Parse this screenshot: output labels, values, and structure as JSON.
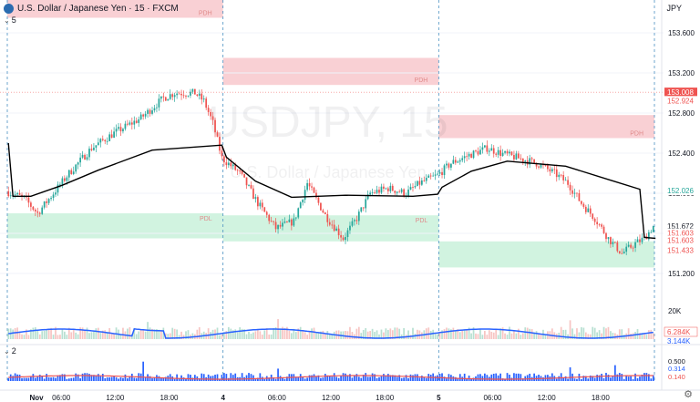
{
  "header": {
    "title": "U.S. Dollar / Japanese Yen · 15 · FXCM",
    "symbol_label": "5",
    "pane2_label": "2",
    "currency": "JPY"
  },
  "colors": {
    "up": "#26a69a",
    "down": "#ef5350",
    "supply": "#f8c8cc",
    "demand": "#c9f1da",
    "vwap": "#000000",
    "volume_ma": "#2962ff",
    "current_price": "#ef5350"
  },
  "chart_data": {
    "type": "candlestick",
    "watermark": "USDJPY, 15",
    "watermark_sub": "U.S. Dollar / Japanese Yen",
    "ylim": [
      150.8,
      153.8
    ],
    "yticks": [
      "153.600",
      "153.200",
      "152.800",
      "152.400",
      "152.000",
      "151.600",
      "151.200"
    ],
    "ytick_values": [
      153.6,
      153.2,
      152.8,
      152.4,
      152.0,
      151.6,
      151.2
    ],
    "xticks": [
      "Nov",
      "06:00",
      "12:00",
      "18:00",
      "4",
      "06:00",
      "12:00",
      "18:00",
      "5",
      "06:00",
      "12:00",
      "18:00"
    ],
    "xtick_values": [
      0,
      24,
      48,
      72,
      96,
      120,
      144,
      168,
      192,
      216,
      240,
      264
    ],
    "session_breaks": [
      0,
      96,
      192,
      288
    ],
    "zones": [
      {
        "kind": "supply",
        "x0": 0,
        "x1": 96,
        "y0": 153.75,
        "y1": 154.0,
        "label": "PDH"
      },
      {
        "kind": "supply",
        "x0": 96,
        "x1": 192,
        "y0": 153.08,
        "y1": 153.35,
        "label": "PDH"
      },
      {
        "kind": "supply",
        "x0": 192,
        "x1": 288,
        "y0": 152.55,
        "y1": 152.78,
        "label": "PDH"
      },
      {
        "kind": "demand",
        "x0": 0,
        "x1": 96,
        "y0": 151.55,
        "y1": 151.8,
        "label": "PDL"
      },
      {
        "kind": "demand",
        "x0": 96,
        "x1": 192,
        "y0": 151.52,
        "y1": 151.78,
        "label": "PDL"
      },
      {
        "kind": "demand",
        "x0": 192,
        "x1": 288,
        "y0": 151.26,
        "y1": 151.52,
        "label": ""
      }
    ],
    "pdh_markers": [
      "PDH",
      "PDH",
      "PDH"
    ],
    "pdl_markers": [
      "PDL",
      "PDL"
    ],
    "vwap": [
      [
        0,
        152.5
      ],
      [
        2,
        151.97
      ],
      [
        10,
        151.97
      ],
      [
        24,
        152.08
      ],
      [
        40,
        152.23
      ],
      [
        64,
        152.43
      ],
      [
        95,
        152.48
      ],
      [
        97,
        152.36
      ],
      [
        110,
        152.12
      ],
      [
        126,
        151.96
      ],
      [
        150,
        151.98
      ],
      [
        180,
        151.97
      ],
      [
        191,
        151.99
      ],
      [
        193,
        152.06
      ],
      [
        206,
        152.22
      ],
      [
        222,
        152.32
      ],
      [
        248,
        152.27
      ],
      [
        268,
        152.13
      ],
      [
        281,
        152.04
      ],
      [
        283,
        151.56
      ],
      [
        288,
        151.55
      ]
    ],
    "series": [
      {
        "keypoints": [
          [
            0,
            152.02
          ],
          [
            8,
            151.95
          ],
          [
            14,
            151.8
          ],
          [
            28,
            152.2
          ],
          [
            38,
            152.45
          ],
          [
            48,
            152.6
          ],
          [
            60,
            152.75
          ],
          [
            70,
            152.95
          ],
          [
            75,
            153.0
          ],
          [
            84,
            153.0
          ],
          [
            88,
            152.92
          ],
          [
            92,
            152.7
          ],
          [
            96,
            152.35
          ],
          [
            104,
            152.2
          ],
          [
            112,
            151.9
          ],
          [
            120,
            151.65
          ],
          [
            128,
            151.72
          ],
          [
            134,
            152.1
          ],
          [
            142,
            151.78
          ],
          [
            150,
            151.55
          ],
          [
            156,
            151.75
          ],
          [
            162,
            152.0
          ],
          [
            170,
            152.05
          ],
          [
            178,
            152.0
          ],
          [
            184,
            152.1
          ],
          [
            192,
            152.18
          ],
          [
            198,
            152.3
          ],
          [
            206,
            152.38
          ],
          [
            214,
            152.45
          ],
          [
            220,
            152.4
          ],
          [
            228,
            152.35
          ],
          [
            236,
            152.3
          ],
          [
            244,
            152.2
          ],
          [
            250,
            152.1
          ],
          [
            256,
            151.9
          ],
          [
            262,
            151.75
          ],
          [
            268,
            151.55
          ],
          [
            274,
            151.4
          ],
          [
            280,
            151.5
          ],
          [
            284,
            151.55
          ],
          [
            288,
            151.67
          ]
        ]
      }
    ],
    "current_labels": {
      "price_last": "153.008",
      "price_close": "152.924",
      "vwap_label": "152.026",
      "last2": "151.672",
      "l3": "151.603",
      "l4": "151.603",
      "l5": "151.433"
    },
    "volume": {
      "axis_label": "20K",
      "last_label": "6.284K",
      "ma_label": "3.144K"
    },
    "oscillator": {
      "yticks": [
        "0.500",
        "0.314",
        "0.140"
      ],
      "last_value": "0.314",
      "ma_value": "0.140"
    }
  }
}
